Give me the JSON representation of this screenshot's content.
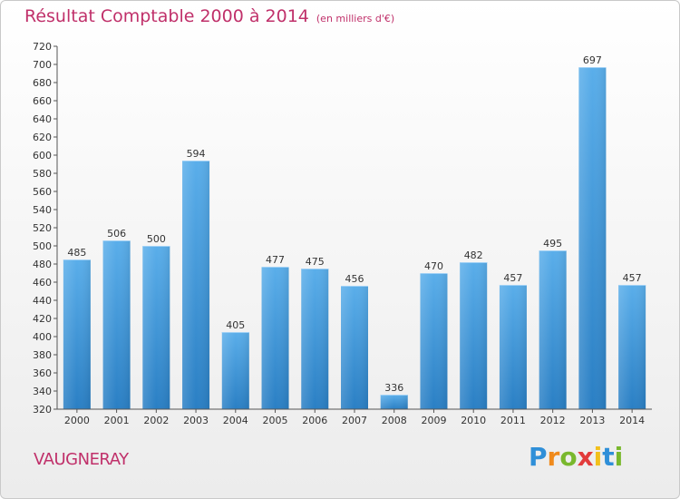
{
  "header": {
    "title": "Résultat Comptable 2000 à 2014",
    "subtitle": "(en milliers d'€)"
  },
  "commune": "VAUGNERAY",
  "logo": {
    "letters": [
      "P",
      "r",
      "o",
      "x",
      "i",
      "t",
      "i"
    ],
    "colors": [
      "#2f8fd8",
      "#f08a1c",
      "#79b82d",
      "#e23b3b",
      "#f2c01c",
      "#2f8fd8",
      "#79b82d"
    ]
  },
  "chart_data": {
    "type": "bar",
    "title": "Résultat Comptable 2000 à 2014",
    "subtitle": "(en milliers d'€)",
    "xlabel": "",
    "ylabel": "",
    "categories": [
      "2000",
      "2001",
      "2002",
      "2003",
      "2004",
      "2005",
      "2006",
      "2007",
      "2008",
      "2009",
      "2010",
      "2011",
      "2012",
      "2013",
      "2014"
    ],
    "values": [
      485,
      506,
      500,
      594,
      405,
      477,
      475,
      456,
      336,
      470,
      482,
      457,
      495,
      697,
      457
    ],
    "ylim": [
      320,
      720
    ],
    "ytick_step": 20,
    "grid": false,
    "bar_color": "#3d9be0"
  }
}
